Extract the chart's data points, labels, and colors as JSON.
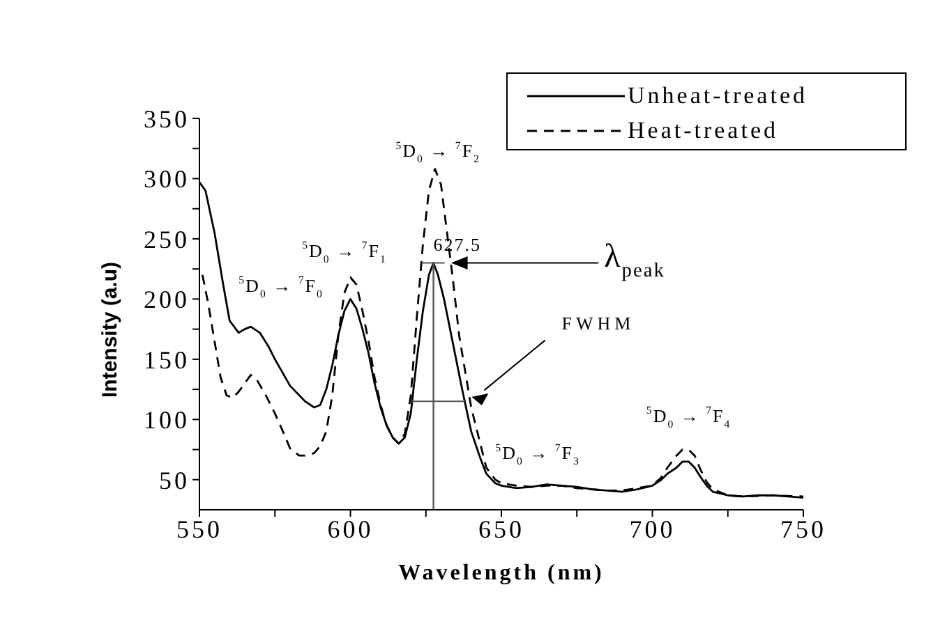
{
  "chart_data": {
    "type": "line",
    "xlabel": "Wavelength (nm)",
    "ylabel": "Intensity (a.u)",
    "xlim": [
      550,
      750
    ],
    "xticks": [
      550,
      {
        "value": 575,
        "label": null
      },
      600,
      {
        "value": 625,
        "label": null
      },
      650,
      {
        "value": 675,
        "label": null
      },
      700,
      {
        "value": 725,
        "label": null
      },
      750
    ],
    "ylim": [
      25,
      350
    ],
    "yticks": [
      50,
      {
        "value": 75,
        "label": null
      },
      100,
      {
        "value": 125,
        "label": null
      },
      150,
      {
        "value": 175,
        "label": null
      },
      200,
      {
        "value": 225,
        "label": null
      },
      250,
      {
        "value": 275,
        "label": null
      },
      300,
      {
        "value": 325,
        "label": null
      },
      350
    ],
    "grid": false,
    "legend": "top right",
    "marker": "none",
    "series": [
      {
        "name": "Unheat-treated",
        "color": "#000000",
        "line_style": "solid",
        "x": [
          550,
          552,
          555,
          558,
          560,
          563,
          565,
          567,
          570,
          573,
          575,
          580,
          585,
          588,
          590,
          592,
          594,
          596,
          598,
          600,
          602,
          604,
          606,
          608,
          610,
          612,
          614,
          616,
          618,
          620,
          622,
          624,
          626,
          627.5,
          629,
          631,
          633,
          635,
          637,
          640,
          643,
          645,
          648,
          650,
          655,
          660,
          665,
          670,
          675,
          680,
          685,
          690,
          695,
          700,
          703,
          705,
          708,
          710,
          712,
          714,
          716,
          718,
          720,
          725,
          730,
          735,
          740,
          745,
          750
        ],
        "values": [
          297,
          290,
          255,
          210,
          182,
          172,
          175,
          177,
          172,
          160,
          150,
          128,
          115,
          110,
          112,
          125,
          145,
          170,
          190,
          200,
          192,
          175,
          155,
          130,
          110,
          95,
          85,
          80,
          85,
          105,
          150,
          190,
          220,
          230,
          220,
          200,
          175,
          150,
          125,
          90,
          68,
          55,
          47,
          45,
          43,
          44,
          46,
          45,
          44,
          42,
          41,
          40,
          42,
          45,
          50,
          55,
          60,
          65,
          65,
          60,
          52,
          45,
          40,
          37,
          36,
          37,
          37,
          36,
          35
        ]
      },
      {
        "name": "Heat-treated",
        "color": "#000000",
        "line_style": "dashed",
        "x": [
          551,
          553,
          555,
          557,
          559,
          561,
          563,
          565,
          567,
          569,
          572,
          575,
          578,
          580,
          583,
          585,
          588,
          590,
          592,
          594,
          596,
          598,
          600,
          602,
          604,
          606,
          608,
          610,
          612,
          614,
          616,
          618,
          620,
          622,
          624,
          626,
          628,
          630,
          632,
          634,
          636,
          638,
          640,
          643,
          645,
          648,
          650,
          655,
          660,
          665,
          670,
          675,
          680,
          685,
          690,
          695,
          700,
          703,
          705,
          708,
          710,
          712,
          714,
          716,
          718,
          720,
          725,
          730,
          740,
          750
        ],
        "values": [
          220,
          195,
          165,
          135,
          120,
          118,
          123,
          130,
          137,
          133,
          120,
          105,
          88,
          76,
          70,
          70,
          72,
          78,
          90,
          120,
          170,
          205,
          218,
          212,
          190,
          165,
          135,
          112,
          95,
          85,
          80,
          88,
          120,
          185,
          245,
          290,
          308,
          295,
          255,
          215,
          170,
          140,
          110,
          80,
          60,
          50,
          47,
          45,
          44,
          45,
          45,
          43,
          42,
          41,
          41,
          43,
          45,
          52,
          60,
          70,
          75,
          75,
          70,
          58,
          48,
          42,
          37,
          36,
          37,
          36
        ]
      }
    ],
    "ref_lines": [
      {
        "axis": "x",
        "value": 627.5
      }
    ],
    "annotations": [
      "$^{5}$D$_{0}$ → $^{7}$F$_{0}$",
      "$^{5}$D$_{0}$ → $^{7}$F$_{1}$",
      "$^{5}$D$_{0}$ → $^{7}$F$_{2}$",
      "627.5",
      "λ$_{peak}$",
      "FWHM",
      "$^{5}$D$_{0}$ → $^{7}$F$_{3}$",
      "$^{5}$D$_{0}$ → $^{7}$F$_{4}$"
    ]
  }
}
